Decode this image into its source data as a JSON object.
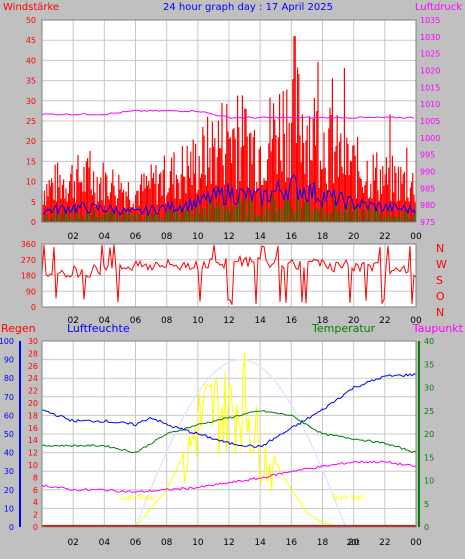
{
  "title": "24 hour graph day : 17 April 2025",
  "colors": {
    "bg": "#c0c0c0",
    "plot_bg": "#ffffff",
    "wind": "#ff0000",
    "gust": "#ff0000",
    "avg_wind": "#0000ff",
    "calm_bars": "#008000",
    "pressure": "#ff00ff",
    "direction": "#ff0000",
    "rain": "#ff0000",
    "humidity": "#0000ff",
    "temperature": "#008000",
    "dewpoint": "#ff00ff",
    "solar": "#ffff00",
    "solar_max": "#e0e8ff"
  },
  "x_ticks": [
    "02",
    "04",
    "06",
    "08",
    "10",
    "12",
    "14",
    "16",
    "18",
    "20",
    "22",
    "00"
  ],
  "chart_data": [
    {
      "type": "bar",
      "title": "24 hour graph day : 17 April 2025",
      "left_axis_label": "Windstärke",
      "right_axis_label": "Luftdruck",
      "left_ticks": [
        "0",
        "5",
        "10",
        "15",
        "20",
        "25",
        "30",
        "35",
        "40",
        "45",
        "50"
      ],
      "right_ticks": [
        "975",
        "980",
        "985",
        "990",
        "995",
        "1000",
        "1005",
        "1010",
        "1015",
        "1020",
        "1025",
        "1030",
        "1035"
      ],
      "ylim_left": [
        0,
        50
      ],
      "ylim_right": [
        975,
        1035
      ],
      "series": [
        {
          "name": "",
          "unit": "",
          "hours": [
            0,
            2,
            4,
            6,
            8,
            10,
            12,
            14,
            16,
            18,
            20,
            22,
            24
          ],
          "values": [
            1007,
            1007,
            1007,
            1008,
            1008,
            1008,
            1006,
            1006,
            1006,
            1006,
            1006,
            1006,
            1006
          ]
        }
      ]
    },
    {
      "type": "line",
      "left_ticks": [
        "0",
        "90",
        "180",
        "270",
        "360"
      ],
      "right_labels": [
        "N",
        "W",
        "S",
        "O",
        "N"
      ],
      "ylim": [
        0,
        360
      ]
    },
    {
      "type": "line",
      "left_axis_label": "Regen",
      "humidity_label": "Luftfeuchte",
      "temp_label": "Temperatur",
      "dew_label": "Taupunkt",
      "rain_ticks": [
        "0",
        "2",
        "4",
        "6",
        "8",
        "10",
        "12",
        "14",
        "16",
        "18",
        "20",
        "22",
        "24",
        "26",
        "28",
        "30"
      ],
      "humidity_ticks": [
        "0",
        "10",
        "20",
        "30",
        "40",
        "50",
        "60",
        "70",
        "80",
        "90",
        "100"
      ],
      "temp_ticks": [
        "0",
        "5",
        "10",
        "15",
        "20",
        "25",
        "30",
        "35",
        "40"
      ],
      "sunrise_label": "Sun Rise",
      "sunset_label": "Sun Set",
      "now_label": "20t",
      "humidity": {
        "hours": [
          0,
          2,
          4,
          6,
          7,
          8,
          10,
          12,
          14,
          16,
          18,
          20,
          22,
          24
        ],
        "values": [
          63,
          57,
          57,
          55,
          59,
          55,
          50,
          45,
          43,
          53,
          63,
          75,
          81,
          82
        ]
      },
      "temperature": {
        "hours": [
          0,
          2,
          4,
          6,
          8,
          10,
          12,
          14,
          16,
          18,
          20,
          22,
          24
        ],
        "values": [
          17.5,
          17.5,
          17.5,
          16,
          20,
          22,
          23.5,
          25,
          24,
          20,
          19,
          18,
          16
        ]
      },
      "dewpoint": {
        "hours": [
          0,
          2,
          4,
          6,
          8,
          10,
          12,
          14,
          16,
          18,
          20,
          22,
          24
        ],
        "values": [
          9,
          8,
          8,
          7.5,
          8,
          8.5,
          9.5,
          10.5,
          12,
          13,
          14,
          14,
          13
        ]
      },
      "solar": {
        "hours": [
          6,
          7,
          8,
          9,
          10,
          11,
          12,
          13,
          14,
          15,
          16,
          17,
          18,
          19,
          20
        ],
        "values": [
          0,
          4,
          8,
          15,
          30,
          34,
          33,
          37,
          22,
          14,
          8,
          3,
          1,
          0,
          0
        ]
      },
      "rain": {
        "hours": [
          0,
          24
        ],
        "values": [
          0,
          0
        ]
      }
    }
  ]
}
